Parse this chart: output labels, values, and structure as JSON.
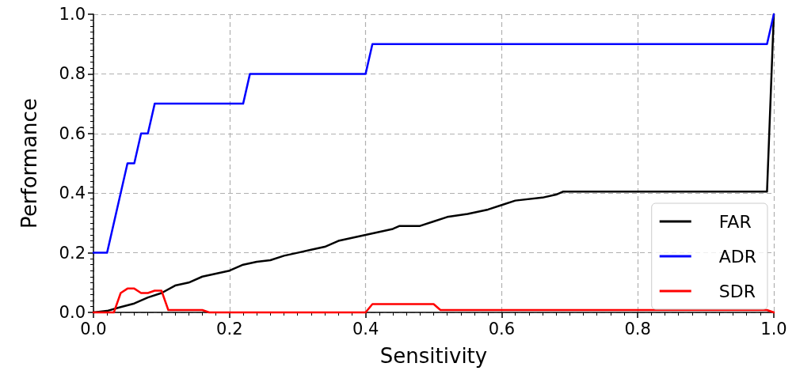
{
  "chart_data": {
    "type": "line",
    "xlabel": "Sensitivity",
    "ylabel": "Performance",
    "xlim": [
      0,
      1
    ],
    "xticks": [
      {
        "value": 0,
        "label": "0.0"
      },
      0.2,
      0.4,
      0.6,
      0.8,
      {
        "value": 1,
        "label": "1.0"
      }
    ],
    "ylim": [
      0,
      1
    ],
    "yticks": [
      {
        "value": 0,
        "label": "0.0"
      },
      0.2,
      0.4,
      0.6,
      0.8,
      {
        "value": 1,
        "label": "1.0"
      }
    ],
    "grid": true,
    "legend": "bottom right",
    "marker": "none",
    "line_style": "solid",
    "series": [
      {
        "name": "FAR",
        "color": "#000000",
        "x": [
          0,
          0.02,
          0.04,
          0.06,
          0.08,
          0.1,
          0.12,
          0.14,
          0.16,
          0.18,
          0.2,
          0.22,
          0.24,
          0.26,
          0.28,
          0.3,
          0.32,
          0.34,
          0.36,
          0.38,
          0.4,
          0.42,
          0.44,
          0.45,
          0.48,
          0.5,
          0.52,
          0.55,
          0.58,
          0.6,
          0.62,
          0.66,
          0.68,
          0.69,
          0.8,
          0.99,
          1.0
        ],
        "values": [
          0,
          0.005,
          0.018,
          0.03,
          0.05,
          0.065,
          0.09,
          0.1,
          0.12,
          0.13,
          0.14,
          0.16,
          0.17,
          0.175,
          0.19,
          0.2,
          0.21,
          0.22,
          0.24,
          0.25,
          0.26,
          0.27,
          0.28,
          0.29,
          0.29,
          0.305,
          0.32,
          0.33,
          0.345,
          0.36,
          0.375,
          0.385,
          0.395,
          0.405,
          0.405,
          0.405,
          1.0
        ]
      },
      {
        "name": "ADR",
        "color": "#0000ff",
        "x": [
          0,
          0.02,
          0.05,
          0.06,
          0.07,
          0.08,
          0.09,
          0.22,
          0.23,
          0.4,
          0.41,
          0.99,
          1.0
        ],
        "values": [
          0.2,
          0.2,
          0.5,
          0.5,
          0.6,
          0.6,
          0.7,
          0.7,
          0.8,
          0.8,
          0.9,
          0.9,
          1.0
        ]
      },
      {
        "name": "SDR",
        "color": "#ff0000",
        "x": [
          0,
          0.03,
          0.04,
          0.05,
          0.06,
          0.07,
          0.08,
          0.09,
          0.1,
          0.11,
          0.16,
          0.17,
          0.4,
          0.41,
          0.5,
          0.51,
          0.99,
          1.0
        ],
        "values": [
          0,
          0,
          0.065,
          0.08,
          0.08,
          0.065,
          0.065,
          0.073,
          0.073,
          0.008,
          0.008,
          0,
          0,
          0.028,
          0.028,
          0.008,
          0.008,
          0
        ]
      }
    ]
  }
}
